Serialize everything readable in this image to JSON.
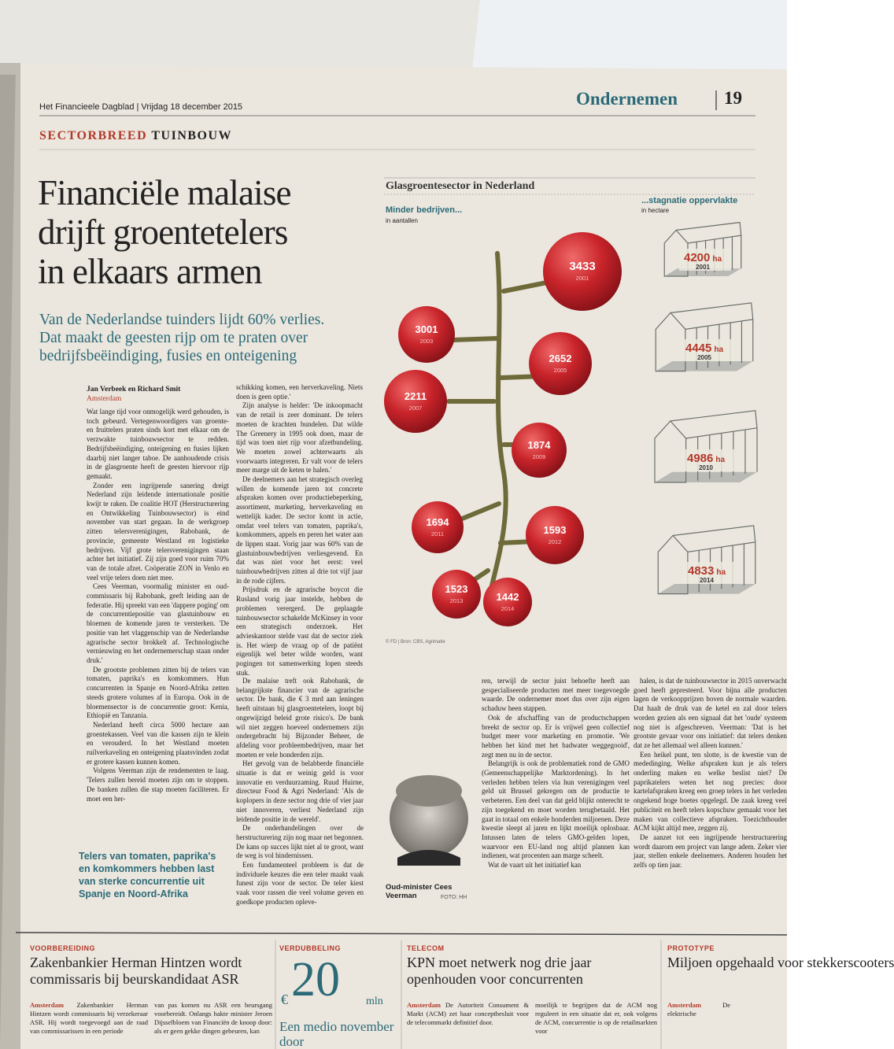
{
  "masthead": {
    "paper": "Het Financieele Dagblad | Vrijdag 18 december 2015",
    "section": "Ondernemen",
    "page": "19"
  },
  "kicker": {
    "label": "SECTORBREED",
    "topic": "TUINBOUW"
  },
  "headline": [
    "Financiële malaise",
    "drijft groentetelers",
    "in elkaars armen"
  ],
  "deck": [
    "Van de Nederlandse tuinders lijdt 60% verlies.",
    "Dat maakt de geesten rijp om te praten over",
    "bedrijfsbeëindiging, fusies en onteigening"
  ],
  "byline": {
    "authors": "Jan Verbeek en Richard Smit",
    "location": "Amsterdam"
  },
  "columns": [
    [
      "Wat lange tijd voor onmogelijk werd gehouden, is toch gebeurd. Vertegenwoordigers van groente- en fruittelers praten sinds kort met elkaar om de verzwakte tuinbouwsector te redden. Bedrijfsbeëindiging, onteigening en fusies lijken daarbij niet langer taboe. De aanhoudende crisis in de glasgroente heeft de geesten hiervoor rijp gemaakt.",
      "Zonder een ingrijpende sanering dreigt Nederland zijn leidende internationale positie kwijt te raken. De coalitie HOT (Herstructurering en Ontwikkeling Tuinbouwsector) is eind november van start gegaan. In de werkgroep zitten telersverenigingen, Rabobank, de provincie, gemeente Westland en logistieke bedrijven. Vijf grote telersverenigingen staan achter het initiatief. Zij zijn goed voor ruim 70% van de totale afzet. Coöperatie ZON in Venlo en veel vrije telers doen niet mee.",
      "Cees Veerman, voormalig minister en oud-commissaris bij Rabobank, geeft leiding aan de federatie. Hij spreekt van een 'dappere poging' om de concurrentiepositie van glastuinbouw en bloemen de komende jaren te versterken. 'De positie van het vlaggenschip van de Nederlandse agrarische sector brokkelt af. Technologische vernieuwing en het ondernemerschap staan onder druk.'",
      "De grootste problemen zitten bij de telers van tomaten, paprika's en komkommers. Hun concurrenten in Spanje en Noord-Afrika zetten steeds grotere volumes af in Europa. Ook in de bloemensector is de concurrentie groot: Kenia, Ethiopië en Tanzania.",
      "Nederland heeft circa 5000 hectare aan groentekassen. Veel van die kassen zijn te klein en verouderd. In het Westland moeten ruilverkaveling en onteigening plaatsvinden zodat er grotere kassen kunnen komen.",
      "Volgens Veerman zijn de rendementen te laag. 'Telers zullen bereid moeten zijn om te stoppen. De banken zullen die stap moeten faciliteren. Er moet een her-"
    ],
    [
      "schikking komen, een herverkaveling. Niets doen is geen optie.'",
      "Zijn analyse is helder: 'De inkoopmacht van de retail is zeer dominant. De telers moeten de krachten bundelen. Dat wilde The Greenery in 1995 ook doen, maar de tijd was toen niet rijp voor afzetbundeling. We moeten zowel achterwaarts als voorwaarts integreren. Er valt voor de telers meer marge uit de keten te halen.'",
      "De deelnemers aan het strategisch overleg willen de komende jaren tot concrete afspraken komen over productiebeperking, assortiment, marketing, herverkaveling en wettelijk kader. De sector komt in actie, omdat veel telers van tomaten, paprika's, komkommers, appels en peren het water aan de lippen staat. Vorig jaar was 60% van de glastuinbouwbedrijven verliesgevend. En dat was niet voor het eerst: veel tuinbouwbedrijven zitten al drie tot vijf jaar in de rode cijfers.",
      "Prijsdruk en de agrarische boycot die Rusland vorig jaar instelde, hebben de problemen verergerd. De geplaagde tuinbouwsector schakelde McKinsey in voor een strategisch onderzoek. Het advieskantoor stelde vast dat de sector ziek is. Het wierp de vraag op of de patiënt eigenlijk wel beter wilde worden, want pogingen tot samenwerking lopen steeds stuk."
    ],
    [
      "De malaise treft ook Rabobank, de belangrijkste financier van de agrarische sector. De bank, die € 3 mrd aan leningen heeft uitstaan bij glasgroentetelers, loopt bij ongewijzigd beleid grote risico's. De bank wil niet zeggen hoeveel ondernemers zijn ondergebracht bij Bijzonder Beheer, de afdeling voor probleembedrijven, maar het moeten er vele honderden zijn.",
      "Het gevolg van de belabberde financiële situatie is dat er weinig geld is voor innovatie en verduurzaming. Ruud Huirne, directeur Food & Agri Nederland: 'Als de koplopers in deze sector nog drie of vier jaar niet innoveren, verliest Nederland zijn leidende positie in de wereld'.",
      "De onderhandelingen over de herstructurering zijn nog maar net begonnen. De kans op succes lijkt niet al te groot, want de weg is vol hindernissen.",
      "Een fundamenteel probleem is dat de individuele keuzes die een teler maakt vaak funest zijn voor de sector. De teler kiest vaak voor rassen die veel volume geven en goedkope producten opleve-"
    ],
    [
      "ren, terwijl de sector juist behoefte heeft aan gespecialiseerde producten met meer toegevoegde waarde. De ondernemer moet dus over zijn eigen schaduw heen stappen.",
      "Ook de afschaffing van de productschappen breekt de sector op. Er is vrijwel geen collectief budget meer voor marketing en promotie. 'We hebben het kind met het badwater weggegooid', zegt men nu in de sector.",
      "Belangrijk is ook de problematiek rond de GMO (Gemeenschappelijke Marktordening). In het verleden hebben telers via hun verenigingen veel geld uit Brussel gekregen om de productie te verbeteren. Een deel van dat geld blijkt onterecht te zijn toegekend en moet worden terugbetaald. Het gaat in totaal om enkele honderden miljoenen. Deze kwestie sleept al jaren en lijkt moeilijk oplosbaar. Intussen laten de telers GMO-gelden lopen, waarvoor een EU-land nog altijd plannen kan indienen, wat procenten aan marge scheelt.",
      "Wat de vaart uit het initiatief kan"
    ],
    [
      "halen, is dat de tuinbouwsector in 2015 onverwacht goed heeft gepresteerd. Voor bijna alle producten lagen de verkoopprijzen boven de normale waarden. Dat haalt de druk van de ketel en zal door telers worden gezien als een signaal dat het 'oude' systeem nog niet is afgeschreven. Veerman: 'Dat is het grootste gevaar voor ons initiatief: dat telers denken dat ze het allemaal wel alleen kunnen.'",
      "Een heikel punt, ten slotte, is de kwestie van de mededinging. Welke afspraken kun je als telers onderling maken en welke beslist niet? De paprikatelers weten het nog precies: door kartelafspraken kreeg een groep telers in het verleden ongekend hoge boetes opgelegd. De zaak kreeg veel publiciteit en heeft telers kopschuw gemaakt voor het maken van collectieve afspraken. Toezichthouder ACM kijkt altijd mee, zeggen zij.",
      "De aanzet tot een ingrijpende herstructurering wordt daarom een project van lange adem. Zeker vier jaar, stellen enkele deelnemers. Anderen houden het zelfs op tien jaar."
    ]
  ],
  "pull_quote": "Telers van tomaten, paprika's en komkommers hebben last van sterke concurrentie uit Spanje en Noord-Afrika",
  "photo_caption": {
    "name": "Oud-minister Cees Veerman",
    "credit": "FOTO: HH"
  },
  "infographic": {
    "title": "Glasgroentesector in Nederland",
    "companies": {
      "title": "Minder bedrijven...",
      "unit": "in aantallen",
      "items": [
        {
          "value": "3433",
          "year": "2001"
        },
        {
          "value": "3001",
          "year": "2003"
        },
        {
          "value": "2652",
          "year": "2005"
        },
        {
          "value": "2211",
          "year": "2007"
        },
        {
          "value": "1874",
          "year": "2009"
        },
        {
          "value": "1694",
          "year": "2011"
        },
        {
          "value": "1593",
          "year": "2012"
        },
        {
          "value": "1523",
          "year": "2013"
        },
        {
          "value": "1442",
          "year": "2014"
        }
      ]
    },
    "area": {
      "title": "...stagnatie oppervlakte",
      "unit": "in hectare",
      "unit_label": "ha",
      "items": [
        {
          "value": "4200",
          "year": "2001"
        },
        {
          "value": "4445",
          "year": "2005"
        },
        {
          "value": "4986",
          "year": "2010"
        },
        {
          "value": "4833",
          "year": "2014"
        }
      ]
    },
    "source": "© FD | Bron: CBS, Agrimatie"
  },
  "teasers": [
    {
      "label": "VOORBEREIDING",
      "headline": "Zakenbankier Herman Hintzen wordt commissaris bij beurskandidaat ASR",
      "place": "Amsterdam",
      "body": [
        "Zakenbankier Herman Hintzen wordt commissaris bij verzekeraar ASR. Hij wordt toegevoegd aan de raad van commissarissen in een periode",
        "van pas komen nu ASR een beursgang voorbereidt. Onlangs hakte minister Jeroen Dijsselbloem van Financiën de knoop door: als er geen gekke dingen gebeuren, kan"
      ]
    },
    {
      "label": "VERDUBBELING",
      "currency": "€",
      "figure": "20",
      "unit": "mln",
      "headline": "Een medio november door"
    },
    {
      "label": "TELECOM",
      "headline": "KPN moet netwerk nog drie jaar openhouden voor concurrenten",
      "place": "Amsterdam",
      "body": [
        "De Autoriteit Consument & Markt (ACM) zet haar conceptbesluit voor de telecommarkt definitief door.",
        "moeilijk te begrijpen dat de ACM nog reguleert in een situatie dat er, ook volgens de ACM, concurrentie is op de retailmarkten voor"
      ]
    },
    {
      "label": "PROTOTYPE",
      "headline": "Miljoen opgehaald voor stekkerscooters",
      "place": "Amsterdam",
      "body": [
        "De elektrische"
      ]
    }
  ]
}
